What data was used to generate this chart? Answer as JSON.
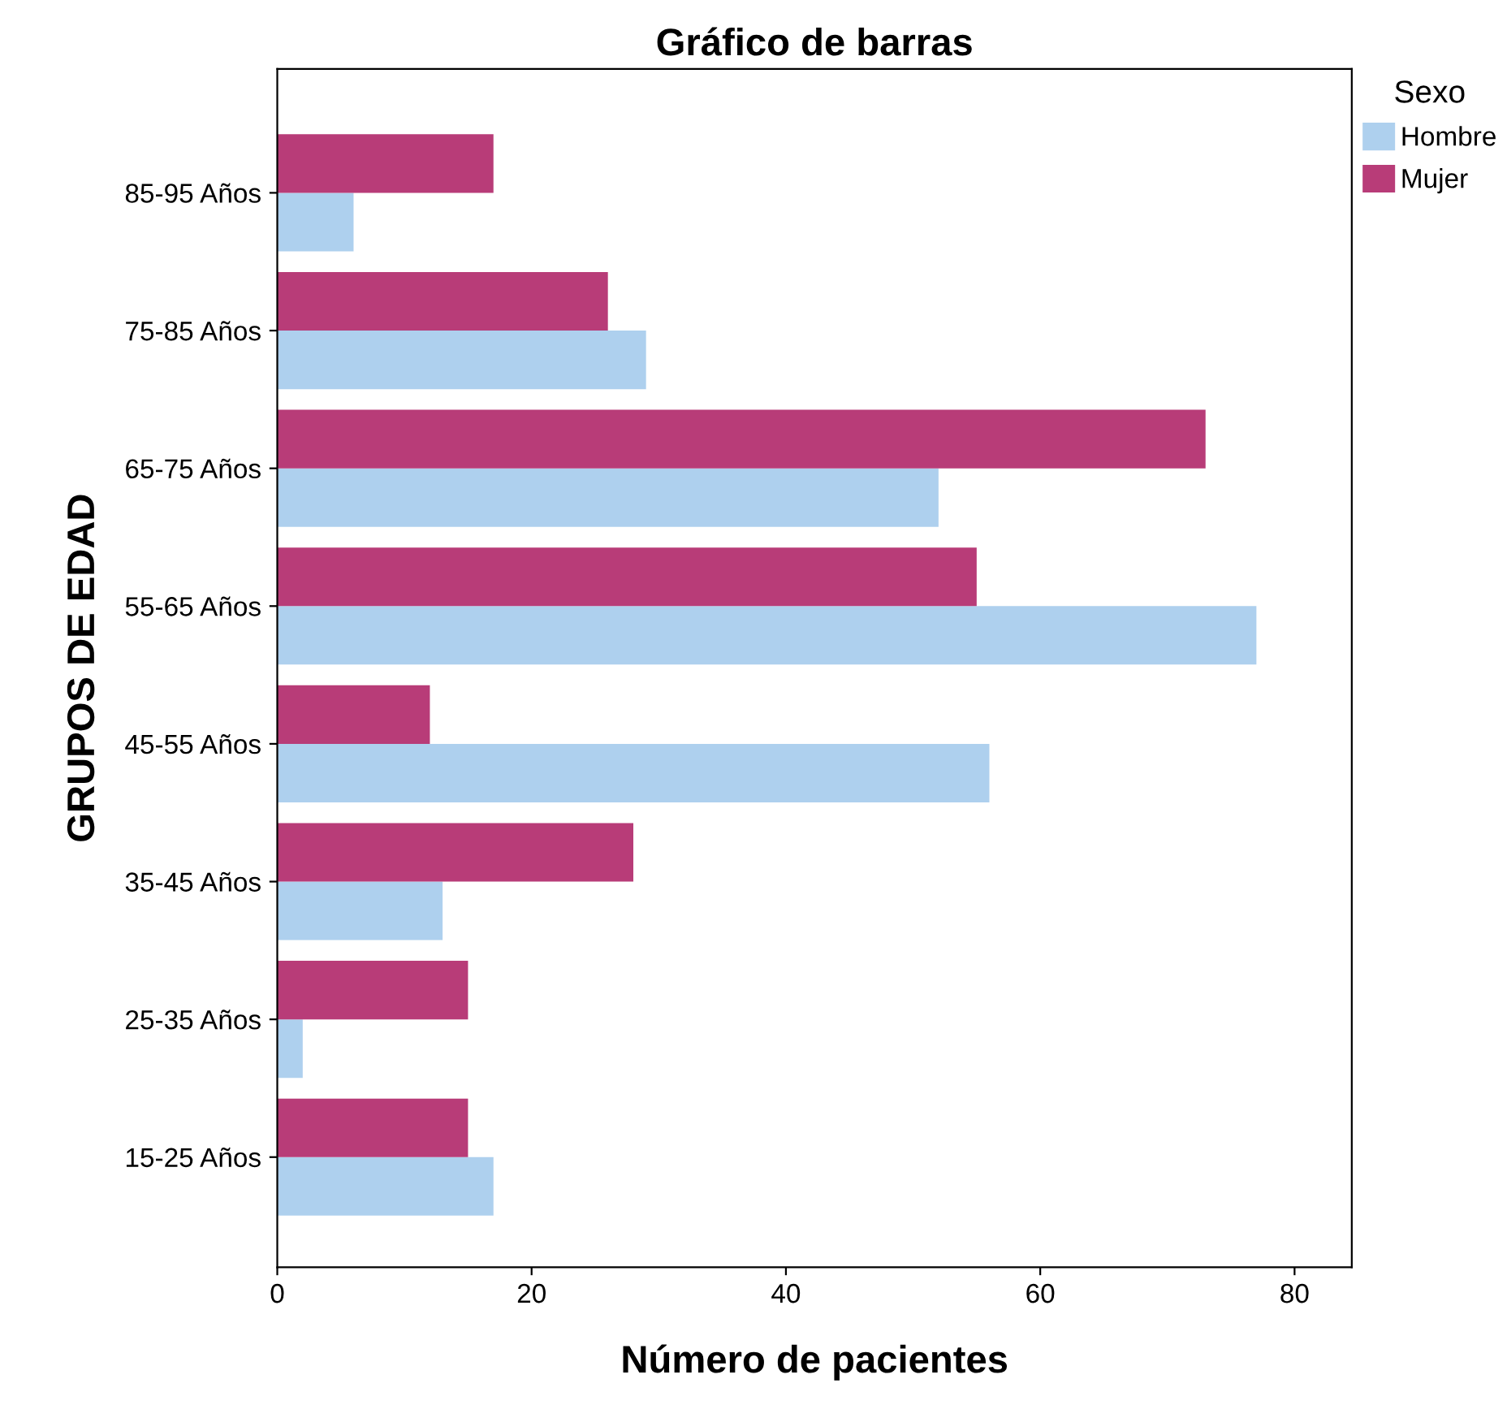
{
  "chart_data": {
    "type": "bar",
    "orientation": "horizontal",
    "title": "Gráfico de barras",
    "xlabel": "Número de pacientes",
    "ylabel": "GRUPOS DE EDAD",
    "legend_title": "Sexo",
    "legend": "top right",
    "grid": false,
    "categories": [
      "85-95 Años",
      "75-85 Años",
      "65-75 Años",
      "55-65 Años",
      "45-55 Años",
      "35-45 Años",
      "25-35 Años",
      "15-25 Años"
    ],
    "series": [
      {
        "name": "Hombre",
        "color": "#aed0ee",
        "values": [
          6,
          29,
          52,
          77,
          56,
          13,
          2,
          17
        ]
      },
      {
        "name": "Mujer",
        "color": "#b83c78",
        "values": [
          17,
          26,
          73,
          55,
          12,
          28,
          15,
          15
        ]
      }
    ],
    "xlim": [
      0,
      84.5
    ],
    "xticks": [
      0,
      20,
      40,
      60,
      80
    ]
  }
}
